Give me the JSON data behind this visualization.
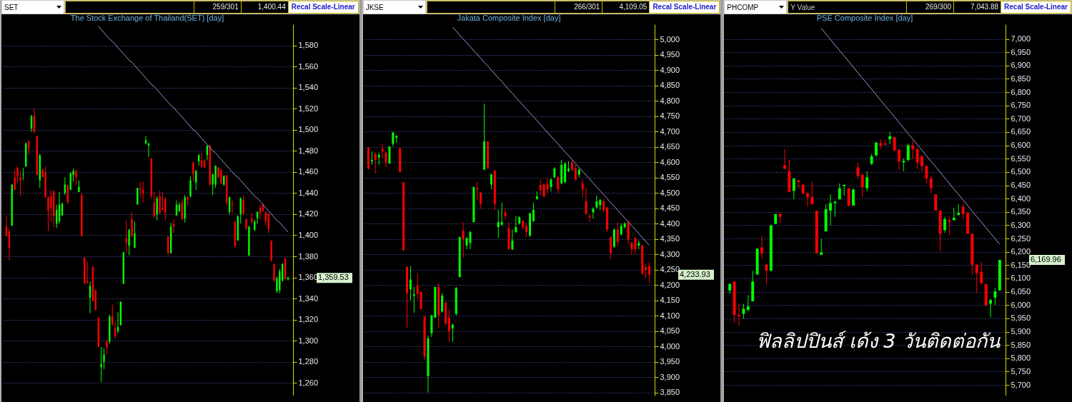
{
  "chart_data": [
    {
      "type": "candlestick",
      "title": "The Stock Exchange of Thailand(SET) [day]",
      "annotations": [
        "SET",
        "259/301",
        "1,400.44",
        "Recal Scale-Linear",
        "1,359.53"
      ],
      "categories": [
        null,
        null,
        null,
        null,
        null,
        null,
        null,
        null,
        null,
        null,
        null,
        null,
        null,
        null,
        null,
        null,
        null,
        null,
        null,
        null,
        null,
        null,
        null,
        null,
        null,
        null,
        null,
        null,
        null,
        null,
        null,
        null,
        null,
        null,
        null,
        null,
        null,
        null,
        null,
        null,
        null,
        null,
        null,
        null,
        null,
        null,
        null,
        null,
        null,
        null,
        null,
        null,
        null,
        null,
        null,
        null,
        null,
        null,
        null,
        null,
        null,
        null,
        null,
        null,
        null,
        null,
        null,
        null,
        null,
        null,
        null,
        null,
        null,
        null,
        null,
        null,
        null,
        null,
        null,
        null,
        null,
        null,
        null,
        null,
        null,
        null,
        null,
        null,
        null,
        null,
        null,
        null,
        null,
        null,
        null,
        null,
        null,
        null,
        null,
        null,
        null,
        null
      ],
      "ohlc": [
        [
          1408,
          1418,
          1399,
          1399
        ],
        [
          1404,
          1406,
          1376,
          1388
        ],
        [
          1409,
          1448,
          1409,
          1448
        ],
        [
          1455,
          1462,
          1443,
          1443
        ],
        [
          1464,
          1465,
          1450,
          1456
        ],
        [
          1455,
          1461,
          1437,
          1452
        ],
        [
          1457,
          1464,
          1452,
          1458
        ],
        [
          1465,
          1488,
          1465,
          1487
        ],
        [
          1489,
          1490,
          1476,
          1482
        ],
        [
          1501,
          1514,
          1498,
          1513
        ],
        [
          1513,
          1520,
          1497,
          1498
        ],
        [
          1494,
          1494,
          1457,
          1457
        ],
        [
          1452,
          1477,
          1445,
          1476
        ],
        [
          1462,
          1463,
          1455,
          1455
        ],
        [
          1459,
          1465,
          1436,
          1436
        ],
        [
          1436,
          1437,
          1404,
          1423
        ],
        [
          1437,
          1443,
          1413,
          1426
        ],
        [
          1442,
          1442,
          1408,
          1418
        ],
        [
          1411,
          1429,
          1407,
          1424
        ],
        [
          1413,
          1441,
          1411,
          1429
        ],
        [
          1419,
          1431,
          1418,
          1430
        ],
        [
          1440,
          1455,
          1438,
          1448
        ],
        [
          1447,
          1448,
          1430,
          1431
        ],
        [
          1443,
          1459,
          1443,
          1459
        ],
        [
          1457,
          1463,
          1451,
          1461
        ],
        [
          1461,
          1462,
          1448,
          1455
        ],
        [
          1441,
          1452,
          1441,
          1446
        ],
        [
          1438,
          1440,
          1399,
          1399
        ],
        [
          1379,
          1379,
          1354,
          1354
        ],
        [
          1356,
          1375,
          1354,
          1355
        ],
        [
          1341,
          1356,
          1326,
          1352
        ],
        [
          1370,
          1371,
          1337,
          1338
        ],
        [
          1348,
          1348,
          1329,
          1329
        ],
        [
          1322,
          1322,
          1294,
          1294
        ],
        [
          1275,
          1294,
          1261,
          1278
        ],
        [
          1280,
          1293,
          1273,
          1287
        ],
        [
          1300,
          1301,
          1287,
          1294
        ],
        [
          1299,
          1325,
          1297,
          1323
        ],
        [
          1323,
          1334,
          1314,
          1316
        ],
        [
          1312,
          1318,
          1302,
          1304
        ],
        [
          1309,
          1327,
          1307,
          1313
        ],
        [
          1315,
          1337,
          1314,
          1337
        ],
        [
          1354,
          1384,
          1354,
          1384
        ],
        [
          1397,
          1414,
          1383,
          1393
        ],
        [
          1390,
          1406,
          1381,
          1405
        ],
        [
          1415,
          1422,
          1398,
          1399
        ],
        [
          1388,
          1413,
          1388,
          1402
        ],
        [
          1429,
          1445,
          1429,
          1445
        ],
        [
          1444,
          1450,
          1436,
          1443
        ],
        [
          1443,
          1451,
          1431,
          1440
        ],
        [
          1487,
          1494,
          1486,
          1490
        ],
        [
          1485,
          1488,
          1474,
          1487
        ],
        [
          1473,
          1473,
          1434,
          1437
        ],
        [
          1431,
          1441,
          1416,
          1418
        ],
        [
          1420,
          1437,
          1414,
          1435
        ],
        [
          1437,
          1442,
          1420,
          1421
        ],
        [
          1426,
          1441,
          1424,
          1424
        ],
        [
          1435,
          1436,
          1414,
          1421
        ],
        [
          1399,
          1399,
          1381,
          1383
        ],
        [
          1383,
          1412,
          1383,
          1408
        ],
        [
          1411,
          1415,
          1402,
          1408
        ],
        [
          1419,
          1433,
          1418,
          1429
        ],
        [
          1423,
          1431,
          1422,
          1429
        ],
        [
          1431,
          1434,
          1415,
          1415
        ],
        [
          1416,
          1438,
          1412,
          1436
        ],
        [
          1436,
          1437,
          1428,
          1434
        ],
        [
          1437,
          1456,
          1436,
          1452
        ],
        [
          1469,
          1470,
          1451,
          1458
        ],
        [
          1450,
          1462,
          1443,
          1461
        ],
        [
          1470,
          1477,
          1466,
          1476
        ],
        [
          1471,
          1478,
          1464,
          1465
        ],
        [
          1471,
          1472,
          1464,
          1464
        ],
        [
          1476,
          1485,
          1471,
          1485
        ],
        [
          1485,
          1486,
          1447,
          1448
        ],
        [
          1448,
          1458,
          1438,
          1458
        ],
        [
          1448,
          1466,
          1445,
          1466
        ],
        [
          1464,
          1465,
          1454,
          1455
        ],
        [
          1462,
          1463,
          1448,
          1449
        ],
        [
          1448,
          1457,
          1447,
          1456
        ],
        [
          1457,
          1457,
          1428,
          1431
        ],
        [
          1422,
          1437,
          1420,
          1436
        ],
        [
          1430,
          1433,
          1421,
          1429
        ],
        [
          1413,
          1413,
          1388,
          1390
        ],
        [
          1395,
          1419,
          1395,
          1418
        ],
        [
          1420,
          1436,
          1411,
          1435
        ],
        [
          1433,
          1438,
          1420,
          1420
        ],
        [
          1415,
          1416,
          1405,
          1406
        ],
        [
          1381,
          1409,
          1380,
          1408
        ],
        [
          1416,
          1421,
          1411,
          1413
        ],
        [
          1405,
          1415,
          1404,
          1413
        ],
        [
          1416,
          1423,
          1411,
          1422
        ],
        [
          1426,
          1429,
          1415,
          1421
        ],
        [
          1429,
          1430,
          1422,
          1423
        ],
        [
          1422,
          1422,
          1409,
          1413
        ],
        [
          1420,
          1421,
          1402,
          1406
        ],
        [
          1395,
          1395,
          1375,
          1376
        ],
        [
          1373,
          1373,
          1356,
          1357
        ],
        [
          1347,
          1361,
          1345,
          1359
        ],
        [
          1348,
          1368,
          1345,
          1366
        ],
        [
          1357,
          1373,
          1356,
          1373
        ],
        [
          1378,
          1379,
          1357,
          1359
        ],
        [
          1358,
          1361,
          1357,
          1359.53
        ]
      ],
      "colors": [
        "#ff0000",
        "#ff0000",
        "#00ff00",
        "#ff0000",
        "#ff0000",
        "#ff0000",
        "#00ff00",
        "#00ff00",
        "#ff0000",
        "#00ff00",
        "#ff0000",
        "#ff0000",
        "#00ff00",
        "#ff0000",
        "#ff0000",
        "#ff0000",
        "#ff0000",
        "#ff0000",
        "#00ff00",
        "#00ff00",
        "#00ff00",
        "#00ff00",
        "#ff0000",
        "#00ff00",
        "#00ff00",
        "#ff0000",
        "#00ff00",
        "#ff0000",
        "#ff0000",
        "#ff0000",
        "#00ff00",
        "#ff0000",
        "#ff0000",
        "#ff0000",
        "#00ff00",
        "#00ff00",
        "#ff0000",
        "#00ff00",
        "#ff0000",
        "#ff0000",
        "#00ff00",
        "#00ff00",
        "#00ff00",
        "#ff0000",
        "#00ff00",
        "#ff0000",
        "#00ff00",
        "#00ff00",
        "#ff0000",
        "#ff0000",
        "#00ff00",
        "#00ff00",
        "#ff0000",
        "#ff0000",
        "#00ff00",
        "#ff0000",
        "#ff0000",
        "#ff0000",
        "#ff0000",
        "#00ff00",
        "#ff0000",
        "#00ff00",
        "#00ff00",
        "#ff0000",
        "#00ff00",
        "#ff0000",
        "#00ff00",
        "#ff0000",
        "#00ff00",
        "#00ff00",
        "#ff0000",
        "#ff0000",
        "#00ff00",
        "#ff0000",
        "#00ff00",
        "#00ff00",
        "#ff0000",
        "#ff0000",
        "#00ff00",
        "#ff0000",
        "#00ff00",
        "#ff0000",
        "#ff0000",
        "#00ff00",
        "#00ff00",
        "#ff0000",
        "#ff0000",
        "#00ff00",
        "#ff0000",
        "#00ff00",
        "#00ff00",
        "#ff0000",
        "#ff0000",
        "#ff0000",
        "#ff0000",
        "#ff0000",
        "#ff0000",
        "#00ff00",
        "#00ff00",
        "#00ff00",
        "#ff0000",
        "#00ff00"
      ],
      "ylim": [
        1248,
        1600
      ],
      "yticks": [
        {
          "value": 1260,
          "label": "1,260"
        },
        {
          "value": 1280,
          "label": "1,280"
        },
        {
          "value": 1300,
          "label": "1,300"
        },
        {
          "value": 1320,
          "label": "1,320"
        },
        {
          "value": 1340,
          "label": "1,340"
        },
        {
          "value": 1360,
          "label": "1,360"
        },
        {
          "value": 1380,
          "label": "1,380"
        },
        {
          "value": 1400,
          "label": "1,400"
        },
        {
          "value": 1420,
          "label": "1,420"
        },
        {
          "value": 1440,
          "label": "1,440"
        },
        {
          "value": 1460,
          "label": "1,460"
        },
        {
          "value": 1480,
          "label": "1,480"
        },
        {
          "value": 1500,
          "label": "1,500"
        },
        {
          "value": 1520,
          "label": "1,520"
        },
        {
          "value": 1540,
          "label": "1,540"
        },
        {
          "value": 1560,
          "label": "1,560"
        },
        {
          "value": 1580,
          "label": "1,580"
        }
      ],
      "grid": "y",
      "tick_labels": "y",
      "series": [
        {
          "type": "line",
          "color": "#9a9ad8",
          "values": [
            null,
            null,
            null,
            null,
            null,
            null,
            null,
            null,
            null,
            null,
            null,
            null,
            null,
            null,
            null,
            null,
            null,
            null,
            null,
            null,
            null,
            null,
            null,
            null,
            null,
            null,
            null,
            null,
            null,
            null,
            null,
            null,
            null,
            1598,
            1595,
            1592,
            1589,
            1586,
            1584,
            1581,
            1578,
            1575,
            1572,
            1569,
            1566,
            1564,
            1561,
            1558,
            1555,
            1552,
            1549,
            1546,
            1543,
            1541,
            1538,
            1535,
            1532,
            1529,
            1526,
            1523,
            1521,
            1518,
            1515,
            1512,
            1509,
            1506,
            1503,
            1500,
            1498,
            1495,
            1492,
            1489,
            1486,
            1483,
            1480,
            1478,
            1475,
            1472,
            1469,
            1466,
            1463,
            1460,
            1457,
            1455,
            1452,
            1449,
            1446,
            1443,
            1440,
            1437,
            1435,
            1432,
            1429,
            1426,
            1423,
            1420,
            1417,
            1414,
            1412,
            1409,
            1406,
            1403
          ]
        }
      ]
    },
    {
      "type": "candlestick",
      "title": "Jakata Composite Index [day]",
      "annotations": [
        "JKSE",
        "266/301",
        "4,109.05",
        "Recal Scale-Linear",
        "4,233.93"
      ],
      "categories": [
        null,
        null,
        null,
        null,
        null,
        null,
        null,
        null,
        null,
        null,
        null,
        null,
        null,
        null,
        null,
        null,
        null,
        null,
        null,
        null,
        null,
        null,
        null,
        null,
        null,
        null,
        null,
        null,
        null,
        null,
        null,
        null,
        null,
        null,
        null,
        null,
        null,
        null,
        null,
        null,
        null,
        null,
        null,
        null,
        null,
        null,
        null,
        null,
        null,
        null,
        null,
        null,
        null,
        null,
        null,
        null,
        null,
        null,
        null,
        null,
        null,
        null,
        null,
        null,
        null,
        null,
        null,
        null,
        null,
        null,
        null,
        null,
        null,
        null,
        null,
        null,
        null,
        null,
        null,
        null,
        null
      ],
      "ohlc": [
        [
          4648,
          4648,
          4576,
          4580
        ],
        [
          4604,
          4636,
          4592,
          4608
        ],
        [
          4628,
          4632,
          4564,
          4608
        ],
        [
          4616,
          4632,
          4592,
          4624
        ],
        [
          4644,
          4660,
          4612,
          4636
        ],
        [
          4632,
          4636,
          4584,
          4600
        ],
        [
          4596,
          4652,
          4596,
          4652
        ],
        [
          4660,
          4700,
          4652,
          4697
        ],
        [
          4680,
          4688,
          4664,
          4686
        ],
        [
          4646,
          4646,
          4568,
          4568
        ],
        [
          4535,
          4535,
          4313,
          4313
        ],
        [
          4259,
          4262,
          4062,
          4174
        ],
        [
          4186,
          4262,
          4150,
          4218
        ],
        [
          4166,
          4194,
          4110,
          4170
        ],
        [
          4198,
          4238,
          4154,
          4170
        ],
        [
          4178,
          4178,
          4118,
          4122
        ],
        [
          4098,
          4098,
          3955,
          3967
        ],
        [
          3903,
          4035,
          3850,
          4027
        ],
        [
          4043,
          4102,
          4031,
          4102
        ],
        [
          4094,
          4194,
          4094,
          4194
        ],
        [
          4194,
          4206,
          4062,
          4102
        ],
        [
          4114,
          4174,
          4110,
          4166
        ],
        [
          4142,
          4146,
          4070,
          4074
        ],
        [
          4094,
          4122,
          4015,
          4051
        ],
        [
          4059,
          4074,
          4015,
          4071
        ],
        [
          4106,
          4194,
          4102,
          4190
        ],
        [
          4226,
          4357,
          4226,
          4357
        ],
        [
          4377,
          4405,
          4289,
          4349
        ],
        [
          4329,
          4357,
          4317,
          4353
        ],
        [
          4337,
          4377,
          4317,
          4373
        ],
        [
          4405,
          4520,
          4405,
          4520
        ],
        [
          4516,
          4536,
          4477,
          4512
        ],
        [
          4501,
          4505,
          4449,
          4465
        ],
        [
          4576,
          4791,
          4576,
          4668
        ],
        [
          4668,
          4668,
          4580,
          4580
        ],
        [
          4528,
          4564,
          4512,
          4560
        ],
        [
          4572,
          4576,
          4445,
          4465
        ],
        [
          4389,
          4445,
          4353,
          4405
        ],
        [
          4397,
          4469,
          4393,
          4405
        ],
        [
          4437,
          4453,
          4413,
          4425
        ],
        [
          4385,
          4405,
          4313,
          4317
        ],
        [
          4317,
          4381,
          4313,
          4345
        ],
        [
          4373,
          4425,
          4369,
          4389
        ],
        [
          4401,
          4425,
          4397,
          4421
        ],
        [
          4409,
          4413,
          4381,
          4389
        ],
        [
          4393,
          4401,
          4357,
          4373
        ],
        [
          4361,
          4437,
          4357,
          4433
        ],
        [
          4409,
          4469,
          4405,
          4445
        ],
        [
          4481,
          4505,
          4477,
          4489
        ],
        [
          4526,
          4544,
          4493,
          4509
        ],
        [
          4528,
          4532,
          4485,
          4489
        ],
        [
          4528,
          4548,
          4501,
          4512
        ],
        [
          4520,
          4548,
          4505,
          4544
        ],
        [
          4552,
          4584,
          4548,
          4580
        ],
        [
          4552,
          4556,
          4501,
          4512
        ],
        [
          4532,
          4608,
          4528,
          4592
        ],
        [
          4536,
          4600,
          4532,
          4596
        ],
        [
          4572,
          4604,
          4568,
          4580
        ],
        [
          4600,
          4612,
          4572,
          4576
        ],
        [
          4580,
          4592,
          4540,
          4544
        ],
        [
          4560,
          4580,
          4552,
          4576
        ],
        [
          4532,
          4544,
          4485,
          4512
        ],
        [
          4473,
          4517,
          4429,
          4433
        ],
        [
          4425,
          4433,
          4405,
          4421
        ],
        [
          4437,
          4453,
          4417,
          4449
        ],
        [
          4453,
          4493,
          4449,
          4473
        ],
        [
          4461,
          4481,
          4445,
          4477
        ],
        [
          4473,
          4481,
          4437,
          4445
        ],
        [
          4453,
          4453,
          4373,
          4381
        ],
        [
          4357,
          4357,
          4285,
          4305
        ],
        [
          4325,
          4385,
          4321,
          4381
        ],
        [
          4381,
          4405,
          4325,
          4341
        ],
        [
          4365,
          4401,
          4361,
          4393
        ],
        [
          4389,
          4405,
          4385,
          4401
        ],
        [
          4405,
          4409,
          4333,
          4349
        ],
        [
          4337,
          4341,
          4301,
          4317
        ],
        [
          4353,
          4357,
          4301,
          4317
        ],
        [
          4329,
          4345,
          4317,
          4337
        ],
        [
          4329,
          4333,
          4234,
          4238
        ],
        [
          4258,
          4270,
          4222,
          4250
        ],
        [
          4262,
          4274,
          4206,
          4233.93
        ]
      ],
      "colors": [
        "#ff0000",
        "#00ff00",
        "#ff0000",
        "#00ff00",
        "#ff0000",
        "#ff0000",
        "#00ff00",
        "#00ff00",
        "#00ff00",
        "#ff0000",
        "#ff0000",
        "#ff0000",
        "#00ff00",
        "#00ff00",
        "#ff0000",
        "#ff0000",
        "#ff0000",
        "#00ff00",
        "#00ff00",
        "#00ff00",
        "#ff0000",
        "#00ff00",
        "#ff0000",
        "#ff0000",
        "#00ff00",
        "#00ff00",
        "#00ff00",
        "#ff0000",
        "#00ff00",
        "#00ff00",
        "#00ff00",
        "#ff0000",
        "#ff0000",
        "#00ff00",
        "#ff0000",
        "#00ff00",
        "#ff0000",
        "#00ff00",
        "#00ff00",
        "#ff0000",
        "#ff0000",
        "#00ff00",
        "#00ff00",
        "#00ff00",
        "#ff0000",
        "#ff0000",
        "#00ff00",
        "#00ff00",
        "#00ff00",
        "#ff0000",
        "#ff0000",
        "#ff0000",
        "#00ff00",
        "#00ff00",
        "#ff0000",
        "#00ff00",
        "#00ff00",
        "#00ff00",
        "#ff0000",
        "#ff0000",
        "#00ff00",
        "#ff0000",
        "#ff0000",
        "#ff0000",
        "#00ff00",
        "#00ff00",
        "#00ff00",
        "#ff0000",
        "#ff0000",
        "#ff0000",
        "#00ff00",
        "#ff0000",
        "#00ff00",
        "#00ff00",
        "#ff0000",
        "#ff0000",
        "#ff0000",
        "#00ff00",
        "#ff0000",
        "#ff0000",
        "#ff0000"
      ],
      "ylim": [
        3840,
        5050
      ],
      "yticks": [
        {
          "value": 3850,
          "label": "3,850"
        },
        {
          "value": 3900,
          "label": "3,900"
        },
        {
          "value": 3950,
          "label": "3,950"
        },
        {
          "value": 4000,
          "label": "4,000"
        },
        {
          "value": 4050,
          "label": "4,050"
        },
        {
          "value": 4100,
          "label": "4,100"
        },
        {
          "value": 4150,
          "label": "4,150"
        },
        {
          "value": 4200,
          "label": "4,200"
        },
        {
          "value": 4250,
          "label": "4,250"
        },
        {
          "value": 4300,
          "label": "4,300"
        },
        {
          "value": 4350,
          "label": "4,350"
        },
        {
          "value": 4400,
          "label": "4,400"
        },
        {
          "value": 4450,
          "label": "4,450"
        },
        {
          "value": 4500,
          "label": "4,500"
        },
        {
          "value": 4550,
          "label": "4,550"
        },
        {
          "value": 4600,
          "label": "4,600"
        },
        {
          "value": 4650,
          "label": "4,650"
        },
        {
          "value": 4700,
          "label": "4,700"
        },
        {
          "value": 4750,
          "label": "4,750"
        },
        {
          "value": 4800,
          "label": "4,800"
        },
        {
          "value": 4850,
          "label": "4,850"
        },
        {
          "value": 4900,
          "label": "4,900"
        },
        {
          "value": 4950,
          "label": "4,950"
        },
        {
          "value": 5000,
          "label": "5,000"
        }
      ],
      "grid": "y",
      "tick_labels": "y",
      "series": [
        {
          "type": "line",
          "color": "#9a9ad8",
          "values": [
            null,
            null,
            null,
            null,
            null,
            null,
            null,
            null,
            null,
            null,
            null,
            null,
            null,
            null,
            null,
            null,
            null,
            null,
            null,
            null,
            null,
            null,
            null,
            null,
            5040,
            5028,
            5015,
            5002,
            4990,
            4977,
            4964,
            4952,
            4939,
            4926,
            4914,
            4901,
            4888,
            4875,
            4863,
            4850,
            4837,
            4825,
            4812,
            4799,
            4787,
            4774,
            4761,
            4749,
            4736,
            4723,
            4710,
            4698,
            4685,
            4672,
            4660,
            4647,
            4634,
            4622,
            4609,
            4596,
            4584,
            4571,
            4558,
            4546,
            4533,
            4520,
            4507,
            4495,
            4482,
            4469,
            4457,
            4444,
            4431,
            4419,
            4406,
            4393,
            4381,
            4368,
            4355,
            4342,
            4330
          ]
        }
      ]
    },
    {
      "type": "candlestick",
      "title": "PSE Composite Index [day]",
      "annotations": [
        "PHCOMP",
        "Y Value",
        "269/300",
        "7,043.88",
        "Recal Scale-Linear",
        "6,169.96",
        "ฟิลลิปปินส์ เด้ง 3 วันติดต่อกัน"
      ],
      "categories": [
        null,
        null,
        null,
        null,
        null,
        null,
        null,
        null,
        null,
        null,
        null,
        null,
        null,
        null,
        null,
        null,
        null,
        null,
        null,
        null,
        null,
        null,
        null,
        null,
        null,
        null,
        null,
        null,
        null,
        null,
        null,
        null,
        null,
        null,
        null,
        null,
        null,
        null,
        null,
        null,
        null,
        null,
        null,
        null,
        null,
        null,
        null,
        null,
        null,
        null,
        null,
        null,
        null,
        null,
        null,
        null,
        null,
        null,
        null,
        null
      ],
      "ohlc": [
        [
          6055,
          6083,
          6042,
          6079
        ],
        [
          6088,
          6092,
          5935,
          5963
        ],
        [
          5963,
          6005,
          5922,
          5958
        ],
        [
          5967,
          6005,
          5949,
          5986
        ],
        [
          5982,
          6037,
          5977,
          5995
        ],
        [
          6014,
          6129,
          6014,
          6088
        ],
        [
          6115,
          6212,
          6115,
          6212
        ],
        [
          6217,
          6259,
          6175,
          6194
        ],
        [
          6152,
          6157,
          6078,
          6129
        ],
        [
          6129,
          6300,
          6129,
          6300
        ],
        [
          6305,
          6342,
          6305,
          6342
        ],
        [
          6342,
          6346,
          6309,
          6332
        ],
        [
          6526,
          6586,
          6512,
          6512
        ],
        [
          6503,
          6545,
          6425,
          6425
        ],
        [
          6429,
          6476,
          6397,
          6476
        ],
        [
          6468,
          6471,
          6439,
          6462
        ],
        [
          6452,
          6457,
          6416,
          6420
        ],
        [
          6420,
          6425,
          6369,
          6406
        ],
        [
          6406,
          6462,
          6379,
          6379
        ],
        [
          6355,
          6355,
          6194,
          6194
        ],
        [
          6189,
          6249,
          6189,
          6198
        ],
        [
          6277,
          6379,
          6277,
          6360
        ],
        [
          6355,
          6416,
          6300,
          6383
        ],
        [
          6383,
          6392,
          6332,
          6388
        ],
        [
          6397,
          6457,
          6397,
          6439
        ],
        [
          6448,
          6452,
          6411,
          6452
        ],
        [
          6439,
          6440,
          6369,
          6374
        ],
        [
          6374,
          6439,
          6374,
          6434
        ],
        [
          6517,
          6536,
          6476,
          6485
        ],
        [
          6489,
          6494,
          6406,
          6443
        ],
        [
          6439,
          6503,
          6429,
          6480
        ],
        [
          6531,
          6568,
          6526,
          6559
        ],
        [
          6563,
          6614,
          6558,
          6610
        ],
        [
          6609,
          6623,
          6586,
          6600
        ],
        [
          6607,
          6623,
          6600,
          6603
        ],
        [
          6623,
          6651,
          6605,
          6634
        ],
        [
          6631,
          6632,
          6577,
          6582
        ],
        [
          6584,
          6586,
          6508,
          6540
        ],
        [
          6536,
          6551,
          6503,
          6542
        ],
        [
          6545,
          6607,
          6540,
          6600
        ],
        [
          6600,
          6619,
          6549,
          6586
        ],
        [
          6586,
          6591,
          6512,
          6536
        ],
        [
          6559,
          6563,
          6503,
          6522
        ],
        [
          6522,
          6526,
          6457,
          6476
        ],
        [
          6476,
          6485,
          6420,
          6439
        ],
        [
          6416,
          6416,
          6355,
          6355
        ],
        [
          6355,
          6355,
          6203,
          6268
        ],
        [
          6282,
          6332,
          6272,
          6323
        ],
        [
          6319,
          6332,
          6263,
          6314
        ],
        [
          6319,
          6365,
          6319,
          6328
        ],
        [
          6339,
          6379,
          6337,
          6346
        ],
        [
          6369,
          6383,
          6323,
          6342
        ],
        [
          6346,
          6351,
          6268,
          6268
        ],
        [
          6268,
          6268,
          6115,
          6152
        ],
        [
          6152,
          6152,
          6046,
          6120
        ],
        [
          6125,
          6162,
          6078,
          6083
        ],
        [
          6079,
          6079,
          5995,
          6000
        ],
        [
          6005,
          6023,
          5954,
          6019
        ],
        [
          6028,
          6065,
          6000,
          6051
        ],
        [
          6055,
          6170,
          6055,
          6169.96
        ]
      ],
      "colors": [
        "#00ff00",
        "#ff0000",
        "#ff0000",
        "#00ff00",
        "#00ff00",
        "#00ff00",
        "#00ff00",
        "#ff0000",
        "#ff0000",
        "#00ff00",
        "#00ff00",
        "#ff0000",
        "#ff0000",
        "#ff0000",
        "#00ff00",
        "#ff0000",
        "#ff0000",
        "#ff0000",
        "#ff0000",
        "#ff0000",
        "#00ff00",
        "#00ff00",
        "#00ff00",
        "#00ff00",
        "#00ff00",
        "#00ff00",
        "#ff0000",
        "#00ff00",
        "#ff0000",
        "#ff0000",
        "#00ff00",
        "#00ff00",
        "#00ff00",
        "#ff0000",
        "#ff0000",
        "#00ff00",
        "#ff0000",
        "#ff0000",
        "#00ff00",
        "#00ff00",
        "#ff0000",
        "#ff0000",
        "#ff0000",
        "#ff0000",
        "#ff0000",
        "#ff0000",
        "#ff0000",
        "#00ff00",
        "#ff0000",
        "#00ff00",
        "#00ff00",
        "#ff0000",
        "#ff0000",
        "#ff0000",
        "#ff0000",
        "#ff0000",
        "#ff0000",
        "#00ff00",
        "#00ff00",
        "#00ff00"
      ],
      "ylim": [
        5660,
        7055
      ],
      "yticks": [
        {
          "value": 5700,
          "label": "5,700"
        },
        {
          "value": 5750,
          "label": "5,750"
        },
        {
          "value": 5800,
          "label": "5,800"
        },
        {
          "value": 5850,
          "label": "5,850"
        },
        {
          "value": 5900,
          "label": "5,900"
        },
        {
          "value": 5950,
          "label": "5,950"
        },
        {
          "value": 6000,
          "label": "6,000"
        },
        {
          "value": 6050,
          "label": "6,050"
        },
        {
          "value": 6100,
          "label": "6,100"
        },
        {
          "value": 6150,
          "label": "6,150"
        },
        {
          "value": 6200,
          "label": "6,200"
        },
        {
          "value": 6250,
          "label": "6,250"
        },
        {
          "value": 6300,
          "label": "6,300"
        },
        {
          "value": 6350,
          "label": "6,350"
        },
        {
          "value": 6400,
          "label": "6,400"
        },
        {
          "value": 6450,
          "label": "6,450"
        },
        {
          "value": 6500,
          "label": "6,500"
        },
        {
          "value": 6550,
          "label": "6,550"
        },
        {
          "value": 6600,
          "label": "6,600"
        },
        {
          "value": 6650,
          "label": "6,650"
        },
        {
          "value": 6700,
          "label": "6,700"
        },
        {
          "value": 6750,
          "label": "6,750"
        },
        {
          "value": 6800,
          "label": "6,800"
        },
        {
          "value": 6850,
          "label": "6,850"
        },
        {
          "value": 6900,
          "label": "6,900"
        },
        {
          "value": 6950,
          "label": "6,950"
        },
        {
          "value": 7000,
          "label": "7,000"
        }
      ],
      "grid": "y",
      "tick_labels": "y",
      "series": [
        {
          "type": "line",
          "color": "#9a9ad8",
          "values": [
            null,
            null,
            null,
            null,
            null,
            null,
            null,
            null,
            null,
            null,
            null,
            null,
            null,
            null,
            null,
            null,
            null,
            null,
            null,
            null,
            7040,
            7019,
            6998,
            6977,
            6956,
            6936,
            6915,
            6894,
            6873,
            6852,
            6832,
            6811,
            6790,
            6769,
            6748,
            6728,
            6707,
            6686,
            6665,
            6644,
            6624,
            6603,
            6582,
            6561,
            6540,
            6520,
            6499,
            6478,
            6457,
            6436,
            6416,
            6395,
            6374,
            6353,
            6332,
            6312,
            6291,
            6270,
            6249,
            6228
          ]
        }
      ]
    }
  ]
}
